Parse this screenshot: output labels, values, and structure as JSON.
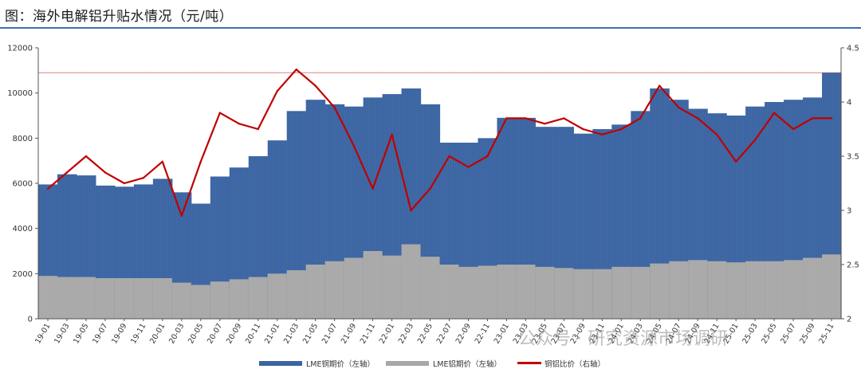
{
  "title": "图：海外电解铝升贴水情况（元/吨）",
  "watermark": "公众号 · 研究资源市场调研",
  "chart_data": {
    "type": "bar",
    "y_left": {
      "min": 0,
      "max": 12000,
      "ticks": [
        0,
        2000,
        4000,
        6000,
        8000,
        10000,
        12000
      ]
    },
    "y_right": {
      "min": 2,
      "max": 4.5,
      "ticks": [
        2,
        2.5,
        3,
        3.5,
        4,
        4.5
      ]
    },
    "x_ticks": [
      "19-01",
      "19-03",
      "19-05",
      "19-07",
      "19-09",
      "19-11",
      "20-01",
      "20-03",
      "20-05",
      "20-07",
      "20-09",
      "20-11",
      "21-01",
      "21-03",
      "21-05",
      "21-07",
      "21-09",
      "21-11",
      "22-01",
      "22-03",
      "22-05",
      "22-07",
      "22-09",
      "22-11",
      "23-01",
      "23-03",
      "23-05",
      "23-07",
      "23-09",
      "23-11",
      "24-01",
      "24-03",
      "24-05",
      "24-07",
      "24-09",
      "24-11",
      "25-01",
      "25-03",
      "25-05",
      "25-07",
      "25-09",
      "25-11"
    ],
    "reference_line_right": 4.27,
    "series": [
      {
        "name": "LME铜期价（左轴）",
        "type": "bar",
        "color": "#3a64a2",
        "axis": "left",
        "values": [
          5950,
          6400,
          6350,
          5900,
          5850,
          5950,
          6200,
          5600,
          5100,
          6300,
          6700,
          7200,
          7900,
          9200,
          9700,
          9500,
          9400,
          9800,
          9950,
          10200,
          9500,
          7800,
          7800,
          8000,
          8900,
          8900,
          8500,
          8500,
          8200,
          8400,
          8600,
          9200,
          10200,
          9700,
          9300,
          9100,
          9000,
          9400,
          9600,
          9700,
          9800,
          10900
        ]
      },
      {
        "name": "LME铝期价（左轴）",
        "type": "bar",
        "color": "#a8a8a8",
        "axis": "left",
        "values": [
          1900,
          1850,
          1850,
          1800,
          1800,
          1800,
          1800,
          1600,
          1500,
          1650,
          1750,
          1850,
          2000,
          2150,
          2400,
          2550,
          2700,
          3000,
          2800,
          3300,
          2750,
          2400,
          2300,
          2350,
          2400,
          2400,
          2300,
          2250,
          2200,
          2200,
          2300,
          2300,
          2450,
          2550,
          2600,
          2550,
          2500,
          2550,
          2550,
          2600,
          2700,
          2850
        ]
      },
      {
        "name": "铜铝比价（右轴）",
        "type": "line",
        "color": "#c00000",
        "axis": "right",
        "values": [
          3.2,
          3.35,
          3.5,
          3.35,
          3.25,
          3.3,
          3.45,
          2.95,
          3.45,
          3.9,
          3.8,
          3.75,
          4.1,
          4.3,
          4.15,
          3.95,
          3.6,
          3.2,
          3.7,
          3.0,
          3.2,
          3.5,
          3.4,
          3.5,
          3.85,
          3.85,
          3.8,
          3.85,
          3.75,
          3.7,
          3.75,
          3.85,
          4.15,
          3.95,
          3.85,
          3.7,
          3.45,
          3.65,
          3.9,
          3.75,
          3.85,
          3.85
        ]
      }
    ]
  },
  "legend": {
    "copper": "LME铜期价（左轴）",
    "aluminum": "LME铝期价（左轴）",
    "ratio": "铜铝比价（右轴）"
  }
}
